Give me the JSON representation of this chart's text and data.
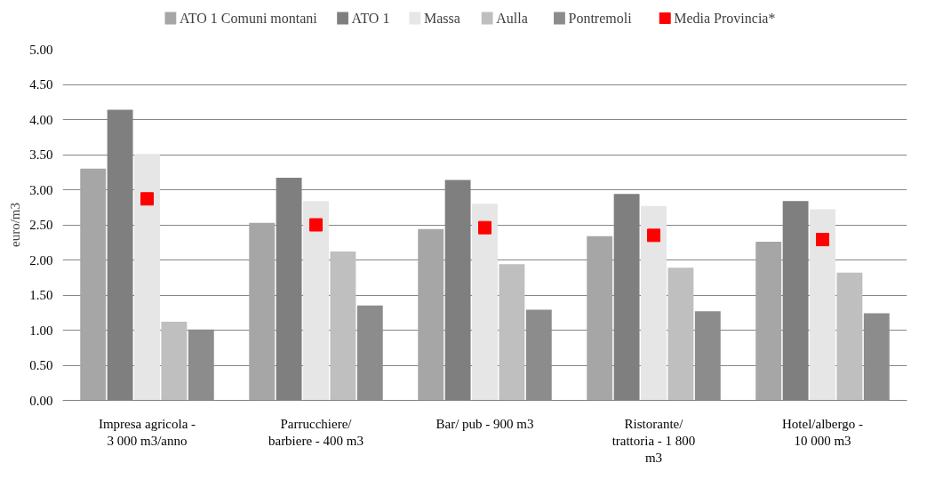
{
  "chart_data": {
    "type": "bar",
    "ylabel": "euro/m3",
    "categories": [
      "Impresa agricola - 3 000 m3/anno",
      "Parrucchiere/ barbiere - 400 m3",
      "Bar/ pub - 900 m3",
      "Ristorante/ trattoria - 1 800 m3",
      "Hotel/albergo - 10 000 m3"
    ],
    "series": [
      {
        "name": "ATO 1 Comuni montani",
        "color": "#a6a6a6",
        "values": [
          3.3,
          2.53,
          2.44,
          2.34,
          2.26
        ]
      },
      {
        "name": "ATO 1",
        "color": "#7f7f7f",
        "values": [
          4.14,
          3.17,
          3.14,
          2.94,
          2.84
        ]
      },
      {
        "name": "Massa",
        "color": "#e6e6e6",
        "values": [
          3.51,
          2.84,
          2.8,
          2.77,
          2.72
        ]
      },
      {
        "name": "Aulla",
        "color": "#bfbfbf",
        "values": [
          1.12,
          2.12,
          1.94,
          1.89,
          1.82
        ]
      },
      {
        "name": "Pontremoli",
        "color": "#8c8c8c",
        "values": [
          1.01,
          1.35,
          1.29,
          1.27,
          1.24
        ]
      },
      {
        "name": "Media Provincia*",
        "type": "scatter",
        "marker": "square",
        "color": "#ff0000",
        "x": [
          "Impresa agricola - 3 000 m3/anno",
          "Parrucchiere/ barbiere - 400 m3",
          "Bar/ pub - 900 m3",
          "Ristorante/ trattoria - 1 800 m3",
          "Hotel/albergo - 10 000 m3"
        ],
        "values": [
          2.87,
          2.5,
          2.46,
          2.35,
          2.29
        ]
      }
    ],
    "ylim": [
      0,
      5
    ],
    "yticks": [
      {
        "value": 0,
        "label": "0.00"
      },
      {
        "value": 0.5,
        "label": "0.50"
      },
      {
        "value": 1,
        "label": "1.00"
      },
      {
        "value": 1.5,
        "label": "1.50"
      },
      {
        "value": 2,
        "label": "2.00"
      },
      {
        "value": 2.5,
        "label": "2.50"
      },
      {
        "value": 3,
        "label": "3.00"
      },
      {
        "value": 3.5,
        "label": "3.50"
      },
      {
        "value": 4,
        "label": "4.00"
      },
      {
        "value": 4.5,
        "label": "4.50"
      },
      {
        "value": 5,
        "label": "5.00"
      }
    ],
    "grid": "y",
    "legend": "top"
  }
}
